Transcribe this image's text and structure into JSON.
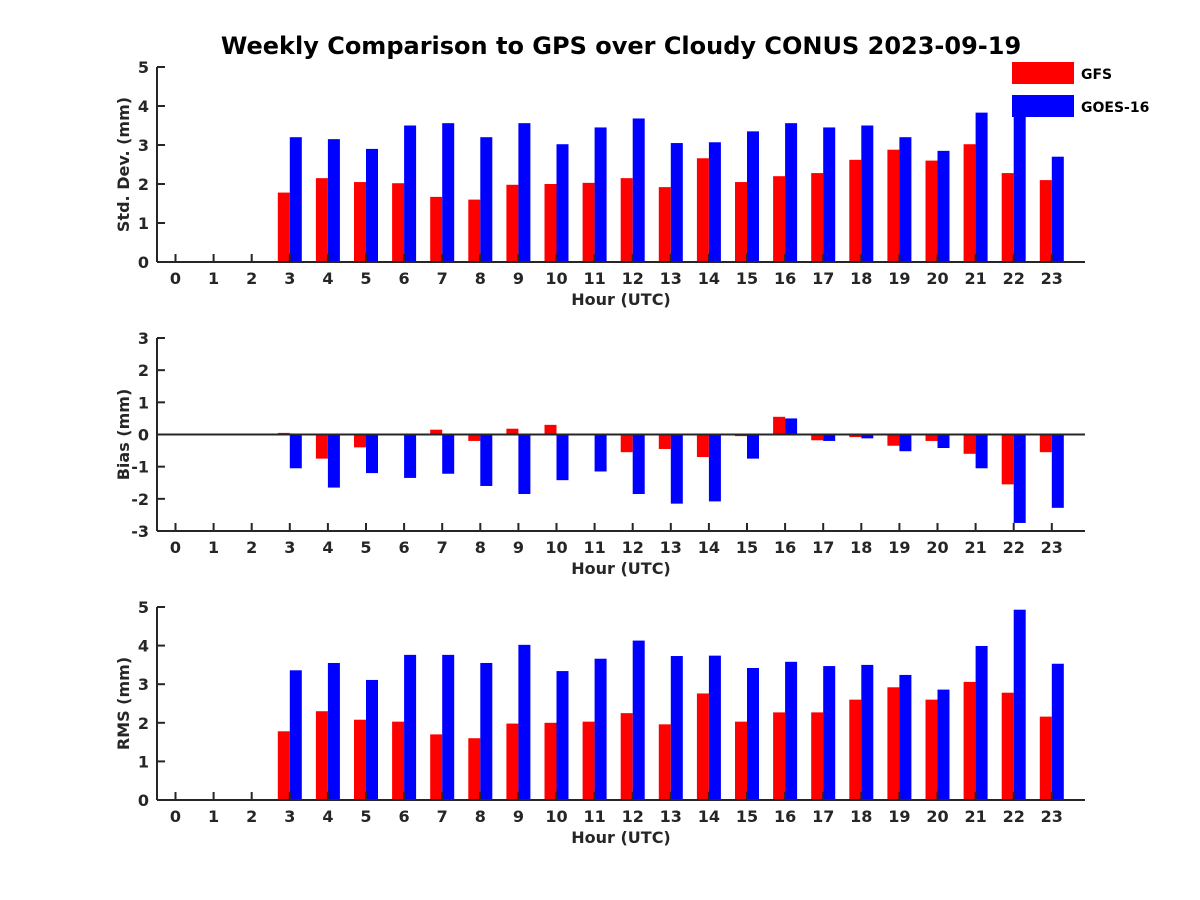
{
  "title": "Weekly Comparison to GPS over Cloudy CONUS 2023-09-19",
  "legend": {
    "position": "top-right",
    "items": [
      {
        "label": "GFS",
        "color": "#ff0000"
      },
      {
        "label": "GOES-16",
        "color": "#0000ff"
      }
    ]
  },
  "chart_data": [
    {
      "type": "bar",
      "xlabel": "Hour (UTC)",
      "ylabel": "Std. Dev. (mm)",
      "ylim": [
        0,
        5
      ],
      "yticks": [
        0,
        1,
        2,
        3,
        4,
        5
      ],
      "categories": [
        "0",
        "1",
        "2",
        "3",
        "4",
        "5",
        "6",
        "7",
        "8",
        "9",
        "10",
        "11",
        "12",
        "13",
        "14",
        "15",
        "16",
        "17",
        "18",
        "19",
        "20",
        "21",
        "22",
        "23"
      ],
      "series": [
        {
          "name": "GFS",
          "color": "#ff0000",
          "values": [
            null,
            null,
            null,
            1.78,
            2.15,
            2.05,
            2.02,
            1.67,
            1.6,
            1.98,
            2.0,
            2.03,
            2.15,
            1.92,
            2.66,
            2.05,
            2.2,
            2.28,
            2.62,
            2.88,
            2.6,
            3.02,
            2.28,
            2.1
          ]
        },
        {
          "name": "GOES-16",
          "color": "#0000ff",
          "values": [
            null,
            null,
            null,
            3.2,
            3.15,
            2.9,
            3.5,
            3.56,
            3.2,
            3.56,
            3.02,
            3.45,
            3.68,
            3.05,
            3.07,
            3.35,
            3.56,
            3.45,
            3.5,
            3.2,
            2.85,
            3.83,
            4.05,
            2.7
          ]
        }
      ]
    },
    {
      "type": "bar",
      "xlabel": "Hour (UTC)",
      "ylabel": "Bias (mm)",
      "ylim": [
        -3,
        3
      ],
      "yticks": [
        -3,
        -2,
        -1,
        0,
        1,
        2,
        3
      ],
      "categories": [
        "0",
        "1",
        "2",
        "3",
        "4",
        "5",
        "6",
        "7",
        "8",
        "9",
        "10",
        "11",
        "12",
        "13",
        "14",
        "15",
        "16",
        "17",
        "18",
        "19",
        "20",
        "21",
        "22",
        "23"
      ],
      "series": [
        {
          "name": "GFS",
          "color": "#ff0000",
          "values": [
            null,
            null,
            null,
            0.05,
            -0.75,
            -0.4,
            -0.02,
            0.15,
            -0.2,
            0.18,
            0.3,
            -0.02,
            -0.55,
            -0.45,
            -0.7,
            -0.05,
            0.55,
            -0.18,
            -0.08,
            -0.35,
            -0.2,
            -0.6,
            -1.55,
            -0.55
          ]
        },
        {
          "name": "GOES-16",
          "color": "#0000ff",
          "values": [
            null,
            null,
            null,
            -1.05,
            -1.65,
            -1.2,
            -1.35,
            -1.22,
            -1.6,
            -1.85,
            -1.42,
            -1.15,
            -1.85,
            -2.15,
            -2.08,
            -0.75,
            0.5,
            -0.2,
            -0.12,
            -0.52,
            -0.42,
            -1.05,
            -2.75,
            -2.28
          ]
        }
      ]
    },
    {
      "type": "bar",
      "xlabel": "Hour (UTC)",
      "ylabel": "RMS (mm)",
      "ylim": [
        0,
        5
      ],
      "yticks": [
        0,
        1,
        2,
        3,
        4,
        5
      ],
      "categories": [
        "0",
        "1",
        "2",
        "3",
        "4",
        "5",
        "6",
        "7",
        "8",
        "9",
        "10",
        "11",
        "12",
        "13",
        "14",
        "15",
        "16",
        "17",
        "18",
        "19",
        "20",
        "21",
        "22",
        "23"
      ],
      "series": [
        {
          "name": "GFS",
          "color": "#ff0000",
          "values": [
            null,
            null,
            null,
            1.78,
            2.3,
            2.08,
            2.03,
            1.7,
            1.6,
            1.98,
            2.0,
            2.03,
            2.25,
            1.96,
            2.76,
            2.03,
            2.27,
            2.27,
            2.6,
            2.92,
            2.6,
            3.06,
            2.78,
            2.16
          ]
        },
        {
          "name": "GOES-16",
          "color": "#0000ff",
          "values": [
            null,
            null,
            null,
            3.36,
            3.55,
            3.11,
            3.76,
            3.76,
            3.55,
            4.02,
            3.34,
            3.66,
            4.13,
            3.73,
            3.74,
            3.42,
            3.58,
            3.47,
            3.5,
            3.24,
            2.86,
            3.99,
            4.93,
            3.53
          ]
        }
      ]
    }
  ]
}
